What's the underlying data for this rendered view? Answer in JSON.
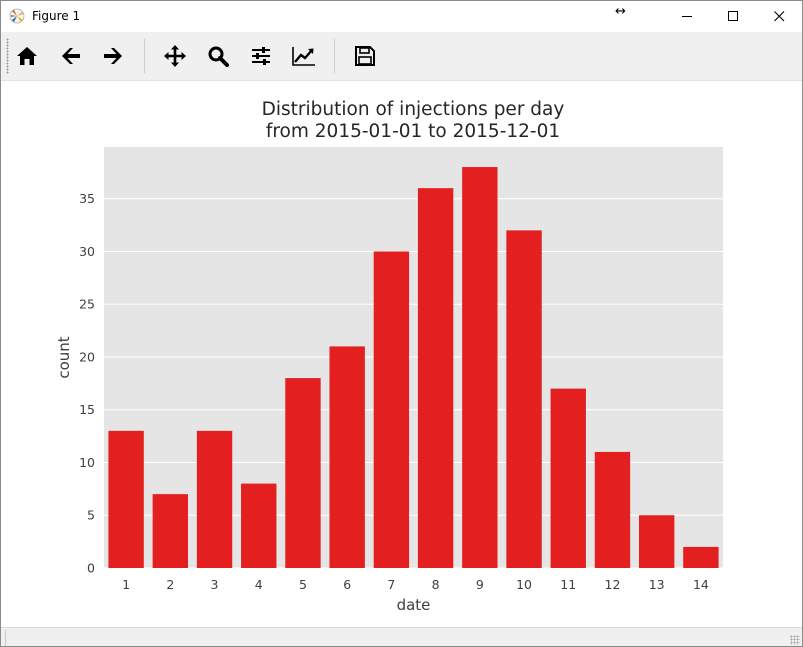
{
  "window": {
    "title": "Figure 1",
    "resize_glyph": "↔"
  },
  "toolbar": {
    "buttons": [
      {
        "name": "home",
        "icon": "home-icon"
      },
      {
        "name": "back",
        "icon": "arrow-left-icon"
      },
      {
        "name": "forward",
        "icon": "arrow-right-icon"
      },
      {
        "name": "pan",
        "icon": "move-icon"
      },
      {
        "name": "zoom",
        "icon": "magnifier-icon"
      },
      {
        "name": "configure-subplots",
        "icon": "sliders-icon"
      },
      {
        "name": "edit-axis",
        "icon": "line-chart-icon"
      },
      {
        "name": "save",
        "icon": "floppy-disk-icon"
      }
    ]
  },
  "chart_data": {
    "type": "bar",
    "title": "Distribution of injections per day\nfrom 2015-01-01 to 2015-12-01",
    "title_line1": "Distribution of injections per day",
    "title_line2": "from 2015-01-01 to 2015-12-01",
    "xlabel": "date",
    "ylabel": "count",
    "categories": [
      "1",
      "2",
      "3",
      "4",
      "5",
      "6",
      "7",
      "8",
      "9",
      "10",
      "11",
      "12",
      "13",
      "14"
    ],
    "values": [
      13,
      7,
      13,
      8,
      18,
      21,
      30,
      36,
      38,
      32,
      17,
      11,
      5,
      2
    ],
    "yticks": [
      0,
      5,
      10,
      15,
      20,
      25,
      30,
      35
    ],
    "ylim": [
      0,
      39.9
    ],
    "grid": true,
    "colors": {
      "bar": "#e31f1f",
      "axes_bg": "#e5e5e5",
      "grid": "#ffffff",
      "text": "#404040"
    }
  }
}
